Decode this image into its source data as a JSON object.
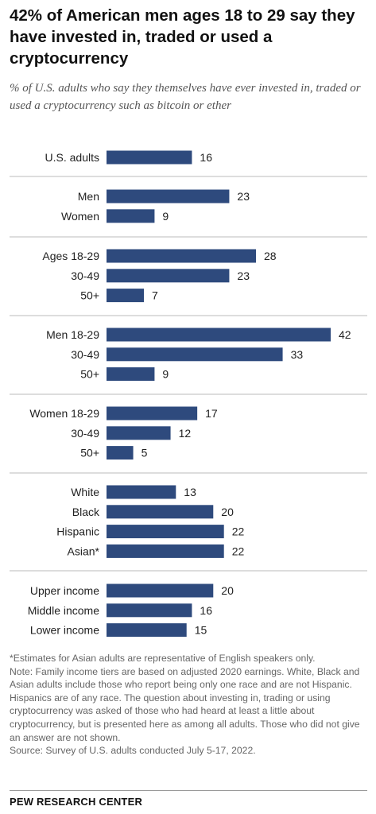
{
  "chart_data": {
    "type": "bar",
    "orientation": "horizontal",
    "title": "42% of American men ages 18 to 29 say they have invested in, traded or used a cryptocurrency",
    "subtitle": "% of U.S. adults who say they themselves have ever invested in, traded or used a cryptocurrency such as bitcoin or ether",
    "xlim": [
      0,
      42
    ],
    "grid": false,
    "bar_color": "#2e4a7d",
    "groups": [
      {
        "items": [
          {
            "label": "U.S. adults",
            "value": 16
          }
        ]
      },
      {
        "items": [
          {
            "label": "Men",
            "value": 23
          },
          {
            "label": "Women",
            "value": 9
          }
        ]
      },
      {
        "items": [
          {
            "label": "Ages 18-29",
            "value": 28
          },
          {
            "label": "30-49",
            "value": 23
          },
          {
            "label": "50+",
            "value": 7
          }
        ]
      },
      {
        "items": [
          {
            "label": "Men 18-29",
            "value": 42
          },
          {
            "label": "30-49",
            "value": 33
          },
          {
            "label": "50+",
            "value": 9
          }
        ]
      },
      {
        "items": [
          {
            "label": "Women 18-29",
            "value": 17
          },
          {
            "label": "30-49",
            "value": 12
          },
          {
            "label": "50+",
            "value": 5
          }
        ]
      },
      {
        "items": [
          {
            "label": "White",
            "value": 13
          },
          {
            "label": "Black",
            "value": 20
          },
          {
            "label": "Hispanic",
            "value": 22
          },
          {
            "label": "Asian*",
            "value": 22
          }
        ]
      },
      {
        "items": [
          {
            "label": "Upper income",
            "value": 20
          },
          {
            "label": "Middle income",
            "value": 16
          },
          {
            "label": "Lower income",
            "value": 15
          }
        ]
      }
    ]
  },
  "notes": [
    "*Estimates for Asian adults are representative of English speakers only.",
    "Note: Family income tiers are based on adjusted 2020 earnings. White, Black and Asian adults include those who report being only one race and are not Hispanic. Hispanics are of any race. The question about investing in, trading or using cryptocurrency was asked of those who had heard at least a little about cryptocurrency, but is presented here as among all adults. Those who did not give an answer are not shown.",
    "Source: Survey of U.S. adults conducted July 5-17, 2022."
  ],
  "source_org": "PEW RESEARCH CENTER"
}
